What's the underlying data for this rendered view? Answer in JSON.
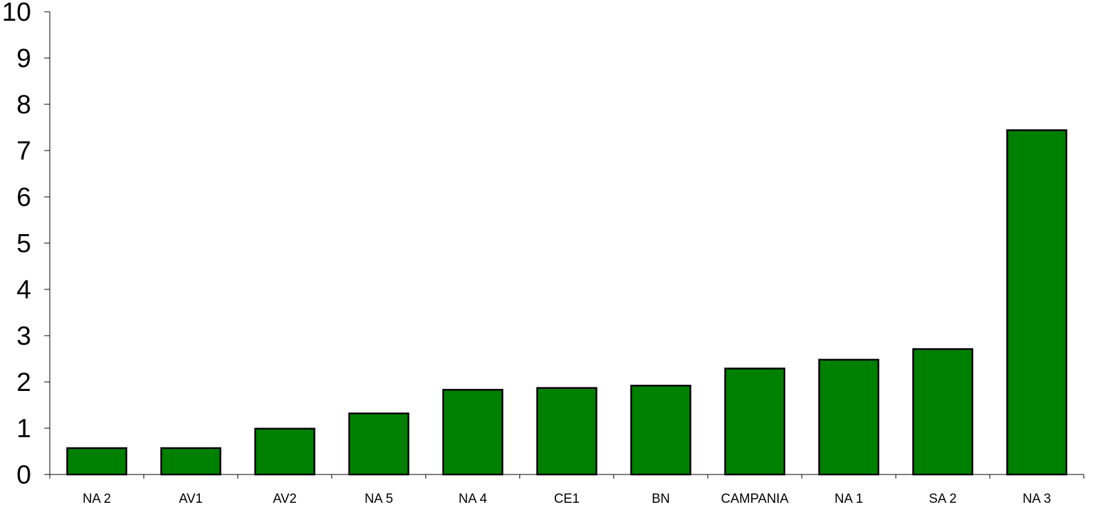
{
  "chart_data": {
    "type": "bar",
    "title": "",
    "xlabel": "",
    "ylabel": "",
    "categories": [
      "NA 2",
      "AV1",
      "AV2",
      "NA 5",
      "NA 4",
      "CE1",
      "BN",
      "CAMPANIA",
      "NA 1",
      "SA 2",
      "NA 3"
    ],
    "values": [
      0.57,
      0.57,
      0.99,
      1.32,
      1.83,
      1.87,
      1.92,
      2.29,
      2.48,
      2.71,
      7.44
    ],
    "ylim": [
      0,
      10
    ],
    "yticks": [
      0,
      1,
      2,
      3,
      4,
      5,
      6,
      7,
      8,
      9,
      10
    ],
    "grid": false,
    "legend": "none",
    "bar_color": "#008000",
    "bar_edge_color": "#000000"
  }
}
